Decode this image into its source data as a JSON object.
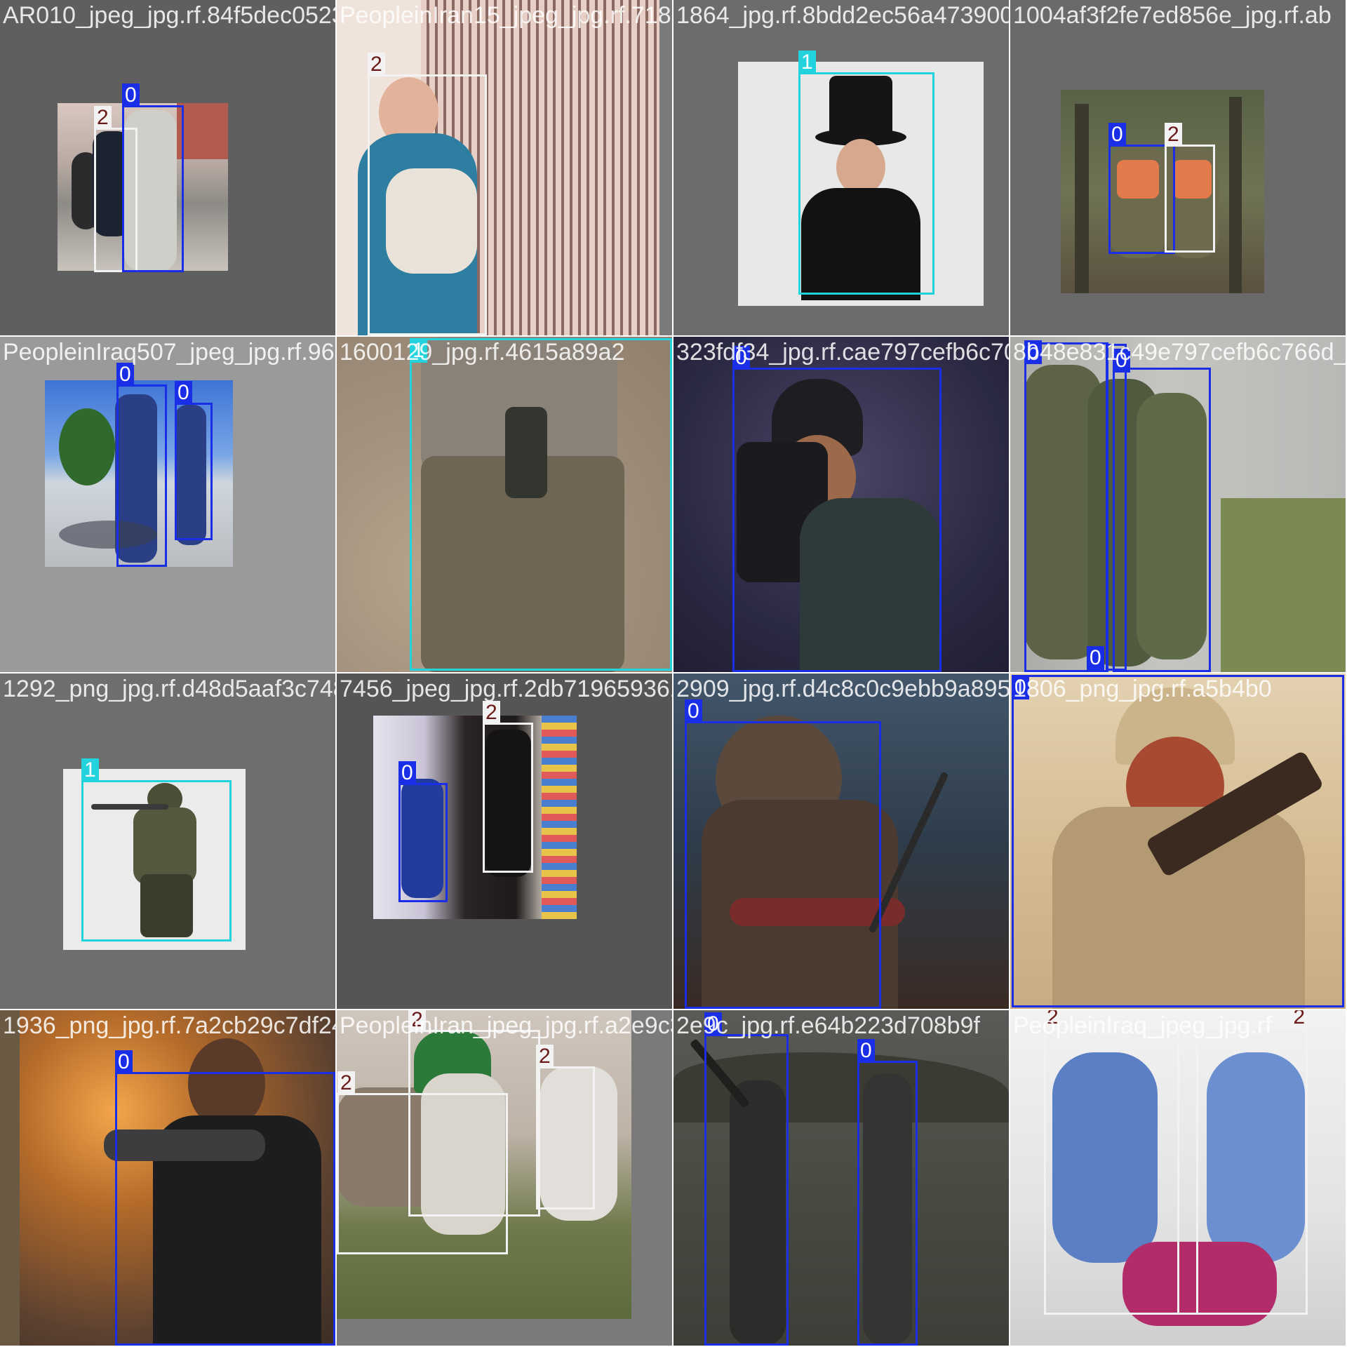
{
  "class_colors": {
    "0": "#1a2ee8",
    "1": "#22d3dd",
    "2": "#f2f2f2"
  },
  "tiles": [
    {
      "filename": "AR010_jpeg_jpg.rf.84f5dec0523bbb8bc4535b9",
      "labels": [
        "0",
        "2"
      ]
    },
    {
      "filename": "PeopleinIran15_jpeg_jpg.rf.7180",
      "labels": [
        "2"
      ]
    },
    {
      "filename": "1864_jpg.rf.8bdd2ec56a4739002f22727ecb4e",
      "labels": [
        "1"
      ]
    },
    {
      "filename": "1004af3f2fe7ed856e_jpg.rf.ab",
      "labels": [
        "0",
        "2"
      ]
    },
    {
      "filename": "PeopleinIraq507_jpeg_jpg.rf.96d87a46dc",
      "labels": [
        "0",
        "0"
      ]
    },
    {
      "filename": "1600129_jpg.rf.4615a89a2",
      "labels": [
        "1"
      ]
    },
    {
      "filename": "323fdf34_jpg.rf.cae797cefb6c70654c",
      "labels": [
        "0"
      ]
    },
    {
      "filename": "8b48e831c49e797cefb6c766d_jpg.rf.be",
      "labels": [
        "0",
        "0",
        "0"
      ]
    },
    {
      "filename": "1292_png_jpg.rf.d48d5aaf3c7480b1",
      "labels": [
        "1"
      ]
    },
    {
      "filename": "7456_jpeg_jpg.rf.2db71965936172985ff5795",
      "labels": [
        "0",
        "2"
      ]
    },
    {
      "filename": "2909_jpg.rf.d4c8c0c9ebb9a8955a0a",
      "labels": [
        "0"
      ]
    },
    {
      "filename": "1806_png_jpg.rf.a5b4b0",
      "labels": [
        "0"
      ]
    },
    {
      "filename": "1936_png_jpg.rf.7a2cb29c7df24b5bd3341",
      "labels": [
        "0"
      ]
    },
    {
      "filename": "PeopleinIran_jpeg_jpg.rf.a2e9c30c472c8",
      "labels": [
        "2",
        "2",
        "2"
      ]
    },
    {
      "filename": "2e9c_jpg.rf.e64b223d708b9f",
      "labels": [
        "0",
        "0"
      ]
    },
    {
      "filename": "PeopleinIraq_jpeg_jpg.rf",
      "labels": [
        "2",
        "2"
      ]
    }
  ]
}
